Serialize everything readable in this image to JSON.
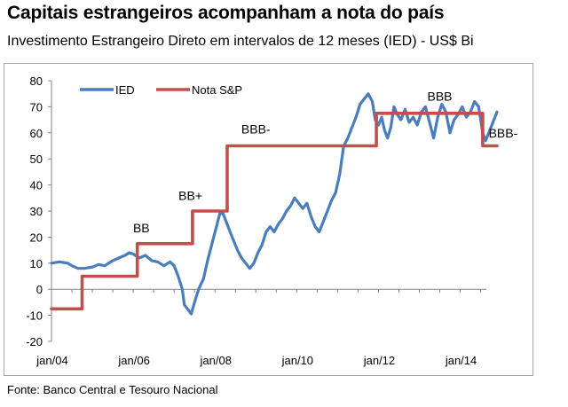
{
  "header": {
    "title": "Capitais estrangeiros acompanham a nota do país",
    "subtitle": "Investimento Estrangeiro Direto em intervalos de 12 meses (IED) - US$ Bi"
  },
  "footer": {
    "source": "Fonte: Banco Central e Tesouro Nacional"
  },
  "chart_data": {
    "type": "line",
    "title": "Capitais estrangeiros acompanham a nota do país",
    "subtitle": "Investimento Estrangeiro Direto em intervalos de 12 meses (IED) - US$ Bi",
    "xlabel": "",
    "ylabel": "",
    "xlim": [
      2004.0,
      2014.9
    ],
    "ylim": [
      -20,
      80
    ],
    "y_ticks": [
      -20,
      -10,
      0,
      10,
      20,
      30,
      40,
      50,
      60,
      70,
      80
    ],
    "x_ticks": [
      {
        "label": "jan/04",
        "x": 2004
      },
      {
        "label": "jan/06",
        "x": 2006
      },
      {
        "label": "jan/08",
        "x": 2008
      },
      {
        "label": "jan/10",
        "x": 2010
      },
      {
        "label": "jan/12",
        "x": 2012
      },
      {
        "label": "jan/14",
        "x": 2014
      }
    ],
    "legend_placement": "top-left",
    "series": [
      {
        "name": "IED",
        "color": "#4a7ebb",
        "points": [
          [
            2004.0,
            10
          ],
          [
            2004.2,
            10.5
          ],
          [
            2004.4,
            10
          ],
          [
            2004.5,
            9
          ],
          [
            2004.65,
            8
          ],
          [
            2004.8,
            8
          ],
          [
            2005.0,
            8.5
          ],
          [
            2005.15,
            9.5
          ],
          [
            2005.3,
            9
          ],
          [
            2005.5,
            11
          ],
          [
            2005.65,
            12
          ],
          [
            2005.8,
            13
          ],
          [
            2005.9,
            14
          ],
          [
            2006.0,
            13.5
          ],
          [
            2006.15,
            12
          ],
          [
            2006.3,
            13
          ],
          [
            2006.45,
            11
          ],
          [
            2006.6,
            10.5
          ],
          [
            2006.75,
            9
          ],
          [
            2006.9,
            10.5
          ],
          [
            2007.0,
            9
          ],
          [
            2007.1,
            5
          ],
          [
            2007.2,
            0
          ],
          [
            2007.25,
            -6
          ],
          [
            2007.35,
            -8
          ],
          [
            2007.42,
            -9.5
          ],
          [
            2007.5,
            -5
          ],
          [
            2007.6,
            0
          ],
          [
            2007.72,
            4
          ],
          [
            2007.82,
            11
          ],
          [
            2007.92,
            17
          ],
          [
            2008.02,
            23
          ],
          [
            2008.12,
            29
          ],
          [
            2008.2,
            29
          ],
          [
            2008.32,
            24
          ],
          [
            2008.42,
            20
          ],
          [
            2008.55,
            15
          ],
          [
            2008.65,
            12
          ],
          [
            2008.75,
            10
          ],
          [
            2008.85,
            8
          ],
          [
            2008.95,
            10
          ],
          [
            2009.05,
            14
          ],
          [
            2009.15,
            17
          ],
          [
            2009.25,
            22
          ],
          [
            2009.35,
            24
          ],
          [
            2009.45,
            22
          ],
          [
            2009.55,
            25
          ],
          [
            2009.65,
            27
          ],
          [
            2009.75,
            30
          ],
          [
            2009.85,
            32
          ],
          [
            2009.95,
            35
          ],
          [
            2010.05,
            33
          ],
          [
            2010.15,
            31
          ],
          [
            2010.25,
            33
          ],
          [
            2010.35,
            28
          ],
          [
            2010.45,
            24
          ],
          [
            2010.55,
            22
          ],
          [
            2010.65,
            26
          ],
          [
            2010.75,
            30
          ],
          [
            2010.85,
            34
          ],
          [
            2010.95,
            37
          ],
          [
            2011.05,
            44
          ],
          [
            2011.15,
            55
          ],
          [
            2011.25,
            58
          ],
          [
            2011.35,
            62
          ],
          [
            2011.45,
            66
          ],
          [
            2011.55,
            71
          ],
          [
            2011.65,
            73
          ],
          [
            2011.75,
            75
          ],
          [
            2011.85,
            72
          ],
          [
            2011.92,
            65
          ],
          [
            2012.0,
            63
          ],
          [
            2012.08,
            66
          ],
          [
            2012.15,
            61
          ],
          [
            2012.22,
            58
          ],
          [
            2012.3,
            62
          ],
          [
            2012.38,
            70
          ],
          [
            2012.46,
            67
          ],
          [
            2012.55,
            65
          ],
          [
            2012.65,
            69
          ],
          [
            2012.75,
            64
          ],
          [
            2012.85,
            66
          ],
          [
            2012.95,
            63
          ],
          [
            2013.05,
            68
          ],
          [
            2013.15,
            70
          ],
          [
            2013.25,
            64
          ],
          [
            2013.35,
            58
          ],
          [
            2013.45,
            66
          ],
          [
            2013.55,
            71
          ],
          [
            2013.65,
            68
          ],
          [
            2013.75,
            60
          ],
          [
            2013.85,
            65
          ],
          [
            2013.95,
            67
          ],
          [
            2014.05,
            70
          ],
          [
            2014.15,
            66
          ],
          [
            2014.25,
            68
          ],
          [
            2014.35,
            72
          ],
          [
            2014.45,
            70
          ],
          [
            2014.55,
            60
          ],
          [
            2014.62,
            57
          ],
          [
            2014.7,
            60
          ],
          [
            2014.8,
            64
          ],
          [
            2014.9,
            68
          ]
        ]
      },
      {
        "name": "Nota S&P",
        "color": "#c0504d",
        "points": [
          [
            2004.0,
            -7.5
          ],
          [
            2004.75,
            -7.5
          ],
          [
            2004.75,
            5
          ],
          [
            2006.1,
            5
          ],
          [
            2006.1,
            17.5
          ],
          [
            2007.45,
            17.5
          ],
          [
            2007.45,
            30
          ],
          [
            2008.3,
            30
          ],
          [
            2008.3,
            55
          ],
          [
            2011.95,
            55
          ],
          [
            2011.95,
            67.5
          ],
          [
            2014.55,
            67.5
          ],
          [
            2014.55,
            55
          ],
          [
            2014.9,
            55
          ]
        ]
      }
    ],
    "annotations": [
      {
        "text": "BB",
        "x": 2006.2,
        "y": 23.5
      },
      {
        "text": "BB+",
        "x": 2007.4,
        "y": 36
      },
      {
        "text": "BBB-",
        "x": 2009.0,
        "y": 61.5
      },
      {
        "text": "BBB",
        "x": 2013.5,
        "y": 74
      },
      {
        "text": "BBB-",
        "x": 2015.05,
        "y": 60
      }
    ]
  }
}
